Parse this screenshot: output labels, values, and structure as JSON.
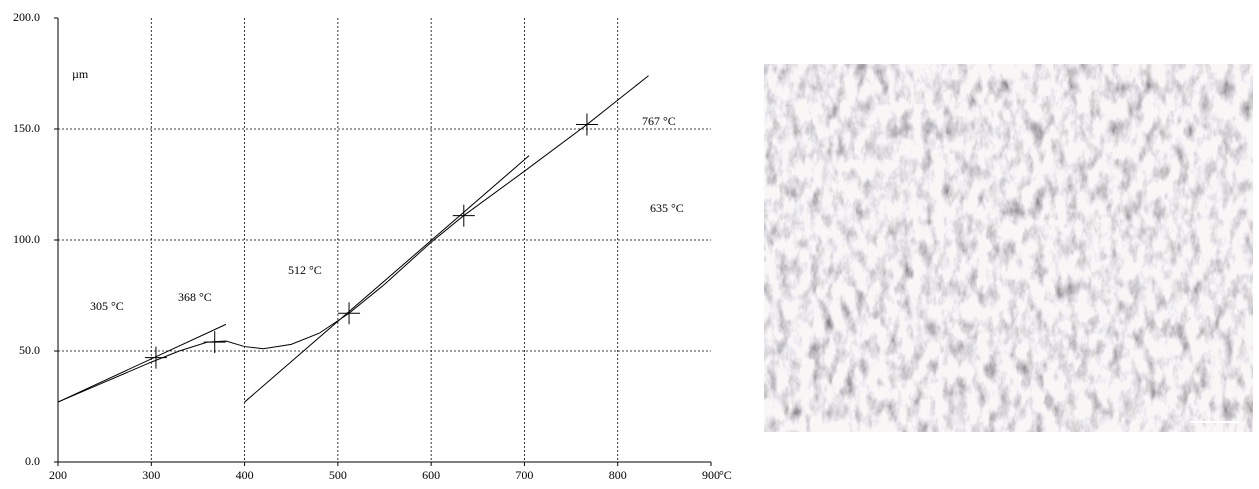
{
  "chart_data": {
    "type": "line",
    "x_label": "°C",
    "y_label": "µm",
    "xlim": [
      200,
      900
    ],
    "xticks": [
      200,
      300,
      400,
      500,
      600,
      700,
      800,
      900
    ],
    "ylim": [
      0,
      200
    ],
    "yticks": [
      {
        "value": 0,
        "label": "0.0"
      },
      {
        "value": 50,
        "label": "50.0"
      },
      {
        "value": 100,
        "label": "100.0"
      },
      {
        "value": 150,
        "label": "150.0"
      },
      {
        "value": 200,
        "label": "200.0"
      }
    ],
    "grid": true,
    "series": [
      {
        "color": "#000000",
        "x": [
          200,
          250,
          300,
          330,
          360,
          380,
          400,
          420,
          450,
          480,
          512,
          550,
          600,
          635,
          700,
          767,
          800,
          833
        ],
        "values": [
          27,
          36,
          45,
          50,
          54,
          54.5,
          52,
          51,
          53,
          58,
          67,
          80,
          99,
          111,
          131,
          152,
          163,
          174
        ]
      },
      {
        "color": "#000000",
        "x": [
          200,
          380
        ],
        "values": [
          27,
          62
        ]
      },
      {
        "color": "#000000",
        "x": [
          400,
          705
        ],
        "values": [
          27,
          138
        ]
      }
    ],
    "markers": {
      "x": [
        305,
        368,
        512,
        635,
        767
      ],
      "values": [
        47,
        54,
        67,
        111,
        152
      ],
      "color": "#000000"
    },
    "annotations": [
      "305 °C",
      "368 °C",
      "512 °C",
      "767 °C",
      "635 °C"
    ]
  }
}
